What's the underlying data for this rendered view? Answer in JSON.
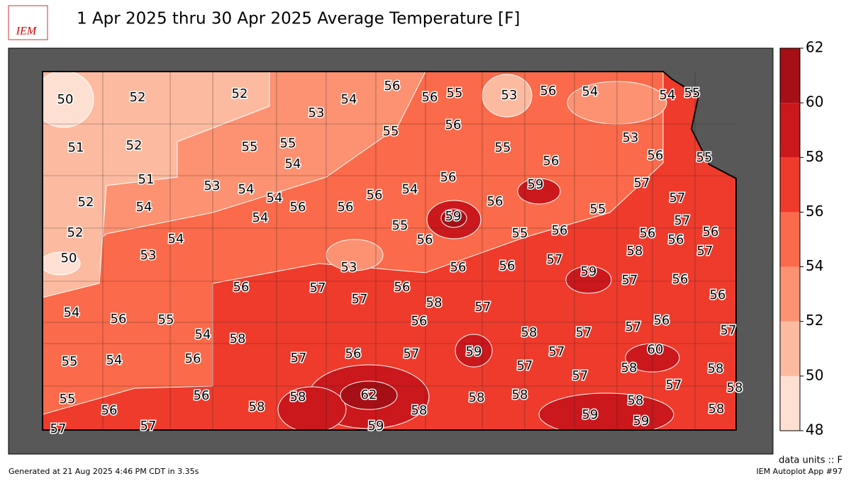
{
  "title": "1 Apr 2025 thru 30 Apr 2025 Average Temperature [F]",
  "logo": "IEM",
  "colorbar": {
    "ticks": [
      48,
      50,
      52,
      54,
      56,
      58,
      60,
      62
    ],
    "colors": [
      "#fee0d2",
      "#fcbba1",
      "#fc9272",
      "#fb6a4a",
      "#ef3b2c",
      "#cb181d",
      "#a50f15"
    ]
  },
  "stations": [
    50,
    52,
    52,
    53,
    54,
    56,
    56,
    55,
    53,
    56,
    54,
    54,
    55,
    51,
    52,
    55,
    55,
    54,
    55,
    56,
    55,
    53,
    56,
    55,
    56,
    51,
    53,
    54,
    54,
    56,
    54,
    56,
    59,
    57,
    57,
    52,
    54,
    56,
    56,
    56,
    55,
    54,
    57,
    52,
    54,
    55,
    59,
    56,
    55,
    56,
    56,
    56,
    56,
    50,
    53,
    53,
    56,
    56,
    57,
    58,
    57,
    54,
    56,
    57,
    57,
    56,
    58,
    57,
    59,
    57,
    56,
    56,
    56,
    55,
    54,
    58,
    56,
    58,
    57,
    57,
    56,
    57,
    55,
    54,
    56,
    57,
    56,
    57,
    59,
    57,
    57,
    60,
    58,
    58,
    57,
    55,
    56,
    56,
    58,
    58,
    62,
    58,
    58,
    58,
    57,
    58,
    58,
    58,
    59,
    59,
    57,
    57,
    59
  ],
  "footer": {
    "units": "data units :: F",
    "generated": "Generated at 21 Aug 2025 4:46 PM CDT in 3.35s",
    "app": "IEM Autoplot App #97"
  }
}
